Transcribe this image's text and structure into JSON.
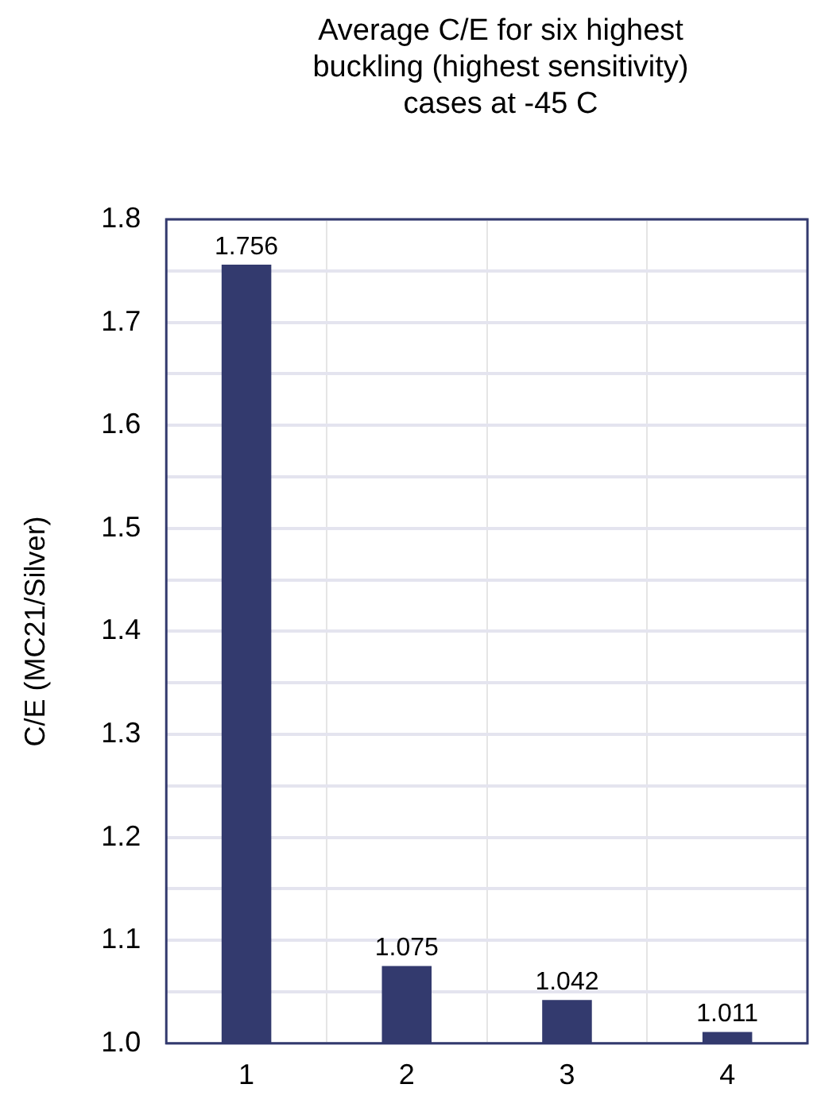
{
  "chart_data": {
    "type": "bar",
    "title": "Average C/E for six highest buckling (highest sensitivity) cases at -45 C",
    "ylabel": "C/E (MC21/Silver)",
    "categories": [
      "1",
      "2",
      "3",
      "4"
    ],
    "values": [
      1.756,
      1.075,
      1.042,
      1.011
    ],
    "color": "#333a6e",
    "ylim": [
      1.0,
      1.8
    ],
    "yticks": [
      {
        "value": 1.0,
        "label": "1.0"
      },
      {
        "value": 1.05,
        "label": null
      },
      {
        "value": 1.1,
        "label": "1.1"
      },
      {
        "value": 1.15,
        "label": null
      },
      {
        "value": 1.2,
        "label": "1.2"
      },
      {
        "value": 1.25,
        "label": null
      },
      {
        "value": 1.3,
        "label": "1.3"
      },
      {
        "value": 1.35,
        "label": null
      },
      {
        "value": 1.4,
        "label": "1.4"
      },
      {
        "value": 1.45,
        "label": null
      },
      {
        "value": 1.5,
        "label": "1.5"
      },
      {
        "value": 1.55,
        "label": null
      },
      {
        "value": 1.6,
        "label": "1.6"
      },
      {
        "value": 1.65,
        "label": null
      },
      {
        "value": 1.7,
        "label": "1.7"
      },
      {
        "value": 1.75,
        "label": null
      },
      {
        "value": 1.8,
        "label": "1.8"
      }
    ],
    "grid": true,
    "data_labels": true
  }
}
